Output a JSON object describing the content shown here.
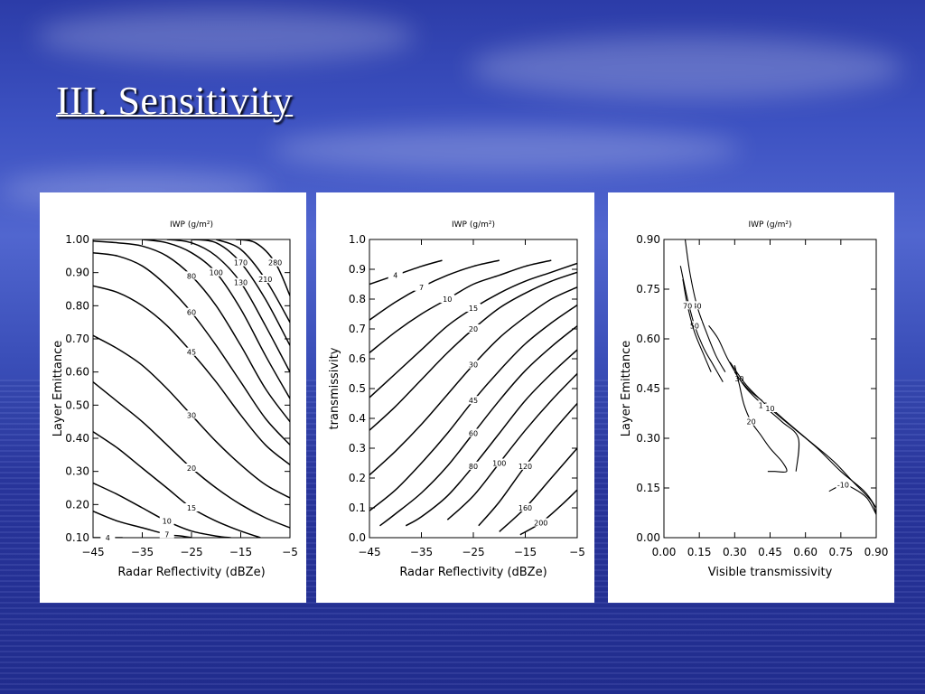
{
  "slide": {
    "title": "III. Sensitivity"
  },
  "chart_data": [
    {
      "type": "line",
      "title": "IWP (g/m²)",
      "xlabel": "Radar Reflectivity (dBZe)",
      "ylabel": "Layer Emittance",
      "xlim": [
        -45,
        -5
      ],
      "ylim": [
        0.1,
        1.0
      ],
      "x_ticks": [
        "−45",
        "−35",
        "−25",
        "−15",
        "−5"
      ],
      "y_ticks": [
        "1.00",
        "0.90",
        "0.80",
        "0.70",
        "0.60",
        "0.50",
        "0.40",
        "0.30",
        "0.20",
        "0.10"
      ],
      "series": [
        {
          "name": "4",
          "x": [
            -45,
            -42,
            -39
          ],
          "y": [
            0.1,
            0.1,
            0.1
          ]
        },
        {
          "name": "7",
          "x": [
            -45,
            -40,
            -35,
            -30,
            -27,
            -25
          ],
          "y": [
            0.18,
            0.15,
            0.13,
            0.11,
            0.105,
            0.1
          ]
        },
        {
          "name": "10",
          "x": [
            -45,
            -40,
            -35,
            -30,
            -25,
            -20,
            -17
          ],
          "y": [
            0.265,
            0.23,
            0.19,
            0.15,
            0.12,
            0.105,
            0.1
          ]
        },
        {
          "name": "15",
          "x": [
            -45,
            -40,
            -35,
            -30,
            -25,
            -20,
            -15,
            -11
          ],
          "y": [
            0.42,
            0.37,
            0.31,
            0.25,
            0.19,
            0.15,
            0.12,
            0.1
          ]
        },
        {
          "name": "20",
          "x": [
            -45,
            -40,
            -35,
            -30,
            -25,
            -20,
            -15,
            -10,
            -5
          ],
          "y": [
            0.57,
            0.51,
            0.45,
            0.38,
            0.31,
            0.25,
            0.2,
            0.16,
            0.13
          ]
        },
        {
          "name": "30",
          "x": [
            -45,
            -40,
            -35,
            -30,
            -25,
            -20,
            -15,
            -10,
            -5
          ],
          "y": [
            0.71,
            0.67,
            0.62,
            0.55,
            0.47,
            0.39,
            0.32,
            0.26,
            0.22
          ]
        },
        {
          "name": "45",
          "x": [
            -45,
            -40,
            -35,
            -30,
            -25,
            -20,
            -15,
            -10,
            -5
          ],
          "y": [
            0.86,
            0.84,
            0.8,
            0.74,
            0.66,
            0.57,
            0.47,
            0.38,
            0.32
          ]
        },
        {
          "name": "60",
          "x": [
            -45,
            -40,
            -35,
            -30,
            -25,
            -20,
            -15,
            -10,
            -5
          ],
          "y": [
            0.96,
            0.95,
            0.92,
            0.86,
            0.78,
            0.68,
            0.57,
            0.46,
            0.38
          ]
        },
        {
          "name": "80",
          "x": [
            -45,
            -40,
            -35,
            -30,
            -25,
            -20,
            -15,
            -10,
            -5
          ],
          "y": [
            0.995,
            0.99,
            0.98,
            0.95,
            0.89,
            0.8,
            0.68,
            0.55,
            0.45
          ]
        },
        {
          "name": "100",
          "x": [
            -35,
            -30,
            -25,
            -20,
            -15,
            -10,
            -5
          ],
          "y": [
            1.0,
            0.99,
            0.96,
            0.9,
            0.79,
            0.65,
            0.52
          ]
        },
        {
          "name": "130",
          "x": [
            -30,
            -25,
            -20,
            -15,
            -10,
            -5
          ],
          "y": [
            1.0,
            0.99,
            0.95,
            0.87,
            0.74,
            0.6
          ]
        },
        {
          "name": "170",
          "x": [
            -25,
            -20,
            -15,
            -10,
            -5
          ],
          "y": [
            1.0,
            0.99,
            0.93,
            0.82,
            0.68
          ]
        },
        {
          "name": "210",
          "x": [
            -20,
            -15,
            -10,
            -5
          ],
          "y": [
            1.0,
            0.97,
            0.88,
            0.75
          ]
        },
        {
          "name": "280",
          "x": [
            -16,
            -12,
            -8,
            -5
          ],
          "y": [
            1.0,
            0.99,
            0.93,
            0.83
          ]
        }
      ]
    },
    {
      "type": "line",
      "title": "IWP (g/m²)",
      "xlabel": "Radar Reflectivity (dBZe)",
      "ylabel": "transmissivity",
      "xlim": [
        -45,
        -5
      ],
      "ylim": [
        0.0,
        1.0
      ],
      "x_ticks": [
        "−45",
        "−35",
        "−25",
        "−15",
        "−5"
      ],
      "y_ticks": [
        "1.0",
        "0.9",
        "0.8",
        "0.7",
        "0.6",
        "0.5",
        "0.4",
        "0.3",
        "0.2",
        "0.1",
        "0.0"
      ],
      "series": [
        {
          "name": "4",
          "x": [
            -45,
            -40,
            -35,
            -31
          ],
          "y": [
            0.85,
            0.88,
            0.91,
            0.93
          ]
        },
        {
          "name": "7",
          "x": [
            -45,
            -40,
            -35,
            -30,
            -25,
            -20
          ],
          "y": [
            0.73,
            0.79,
            0.84,
            0.88,
            0.91,
            0.93
          ]
        },
        {
          "name": "10",
          "x": [
            -45,
            -40,
            -35,
            -30,
            -25,
            -20,
            -15,
            -10
          ],
          "y": [
            0.62,
            0.69,
            0.75,
            0.8,
            0.85,
            0.88,
            0.91,
            0.93
          ]
        },
        {
          "name": "15",
          "x": [
            -45,
            -40,
            -35,
            -30,
            -25,
            -20,
            -15,
            -10,
            -5
          ],
          "y": [
            0.47,
            0.55,
            0.63,
            0.71,
            0.77,
            0.82,
            0.86,
            0.89,
            0.92
          ]
        },
        {
          "name": "20",
          "x": [
            -45,
            -40,
            -35,
            -30,
            -25,
            -20,
            -15,
            -10,
            -5
          ],
          "y": [
            0.36,
            0.44,
            0.53,
            0.62,
            0.7,
            0.77,
            0.82,
            0.86,
            0.89
          ]
        },
        {
          "name": "30",
          "x": [
            -45,
            -40,
            -35,
            -30,
            -25,
            -20,
            -15,
            -10,
            -5
          ],
          "y": [
            0.21,
            0.29,
            0.38,
            0.48,
            0.58,
            0.67,
            0.74,
            0.8,
            0.84
          ]
        },
        {
          "name": "45",
          "x": [
            -45,
            -40,
            -35,
            -30,
            -25,
            -20,
            -15,
            -10,
            -5
          ],
          "y": [
            0.09,
            0.16,
            0.25,
            0.35,
            0.46,
            0.56,
            0.65,
            0.72,
            0.78
          ]
        },
        {
          "name": "60",
          "x": [
            -43,
            -40,
            -35,
            -30,
            -25,
            -20,
            -15,
            -10,
            -5
          ],
          "y": [
            0.04,
            0.08,
            0.15,
            0.24,
            0.35,
            0.46,
            0.56,
            0.64,
            0.71
          ]
        },
        {
          "name": "80",
          "x": [
            -38,
            -35,
            -30,
            -25,
            -20,
            -15,
            -10,
            -5
          ],
          "y": [
            0.04,
            0.07,
            0.14,
            0.24,
            0.35,
            0.46,
            0.55,
            0.63
          ]
        },
        {
          "name": "100",
          "x": [
            -30,
            -25,
            -20,
            -15,
            -10,
            -5
          ],
          "y": [
            0.06,
            0.14,
            0.25,
            0.36,
            0.46,
            0.55
          ]
        },
        {
          "name": "120",
          "x": [
            -24,
            -20,
            -15,
            -10,
            -5
          ],
          "y": [
            0.04,
            0.12,
            0.24,
            0.35,
            0.45
          ]
        },
        {
          "name": "160",
          "x": [
            -20,
            -15,
            -10,
            -5
          ],
          "y": [
            0.02,
            0.1,
            0.2,
            0.3
          ]
        },
        {
          "name": "200",
          "x": [
            -16,
            -12,
            -8,
            -5
          ],
          "y": [
            0.01,
            0.05,
            0.11,
            0.16
          ]
        }
      ]
    },
    {
      "type": "line",
      "title": "IWP (g/m²)",
      "xlabel": "Visible transmissivity",
      "ylabel": "Layer Emittance",
      "xlim": [
        0.0,
        0.9
      ],
      "ylim": [
        0.0,
        0.9
      ],
      "x_ticks": [
        "0.00",
        "0.15",
        "0.30",
        "0.45",
        "0.60",
        "0.75",
        "0.90"
      ],
      "y_ticks": [
        "0.90",
        "0.75",
        "0.60",
        "0.45",
        "0.30",
        "0.15",
        "0.00"
      ],
      "series": [
        {
          "name": "40",
          "x": [
            0.09,
            0.11,
            0.14,
            0.18,
            0.22,
            0.26
          ],
          "y": [
            0.9,
            0.8,
            0.7,
            0.62,
            0.55,
            0.5
          ]
        },
        {
          "name": "50",
          "x": [
            0.07,
            0.1,
            0.13,
            0.17,
            0.21,
            0.25
          ],
          "y": [
            0.82,
            0.72,
            0.64,
            0.57,
            0.52,
            0.47
          ]
        },
        {
          "name": "70",
          "x": [
            0.08,
            0.1,
            0.13,
            0.17,
            0.2
          ],
          "y": [
            0.78,
            0.7,
            0.62,
            0.55,
            0.5
          ]
        },
        {
          "name": "30",
          "x": [
            0.19,
            0.23,
            0.27,
            0.32,
            0.37,
            0.44,
            0.52,
            0.62,
            0.72,
            0.8,
            0.88,
            0.9
          ],
          "y": [
            0.64,
            0.6,
            0.54,
            0.48,
            0.44,
            0.4,
            0.35,
            0.29,
            0.23,
            0.17,
            0.11,
            0.07
          ]
        },
        {
          "name": "20",
          "x": [
            0.3,
            0.32,
            0.34,
            0.37,
            0.41,
            0.45,
            0.5,
            0.52,
            0.47,
            0.44
          ],
          "y": [
            0.52,
            0.46,
            0.4,
            0.35,
            0.31,
            0.27,
            0.23,
            0.2,
            0.2,
            0.2
          ]
        },
        {
          "name": "16",
          "x": [
            0.3,
            0.35,
            0.42,
            0.5,
            0.57,
            0.56
          ],
          "y": [
            0.5,
            0.45,
            0.4,
            0.35,
            0.3,
            0.2
          ]
        },
        {
          "name": "10",
          "x": [
            0.28,
            0.35,
            0.45,
            0.55,
            0.65,
            0.75,
            0.85,
            0.9
          ],
          "y": [
            0.53,
            0.46,
            0.39,
            0.33,
            0.27,
            0.2,
            0.14,
            0.09
          ]
        },
        {
          "name": "-10",
          "x": [
            0.7,
            0.76,
            0.8,
            0.86,
            0.9
          ],
          "y": [
            0.14,
            0.16,
            0.15,
            0.12,
            0.07
          ]
        }
      ]
    }
  ]
}
